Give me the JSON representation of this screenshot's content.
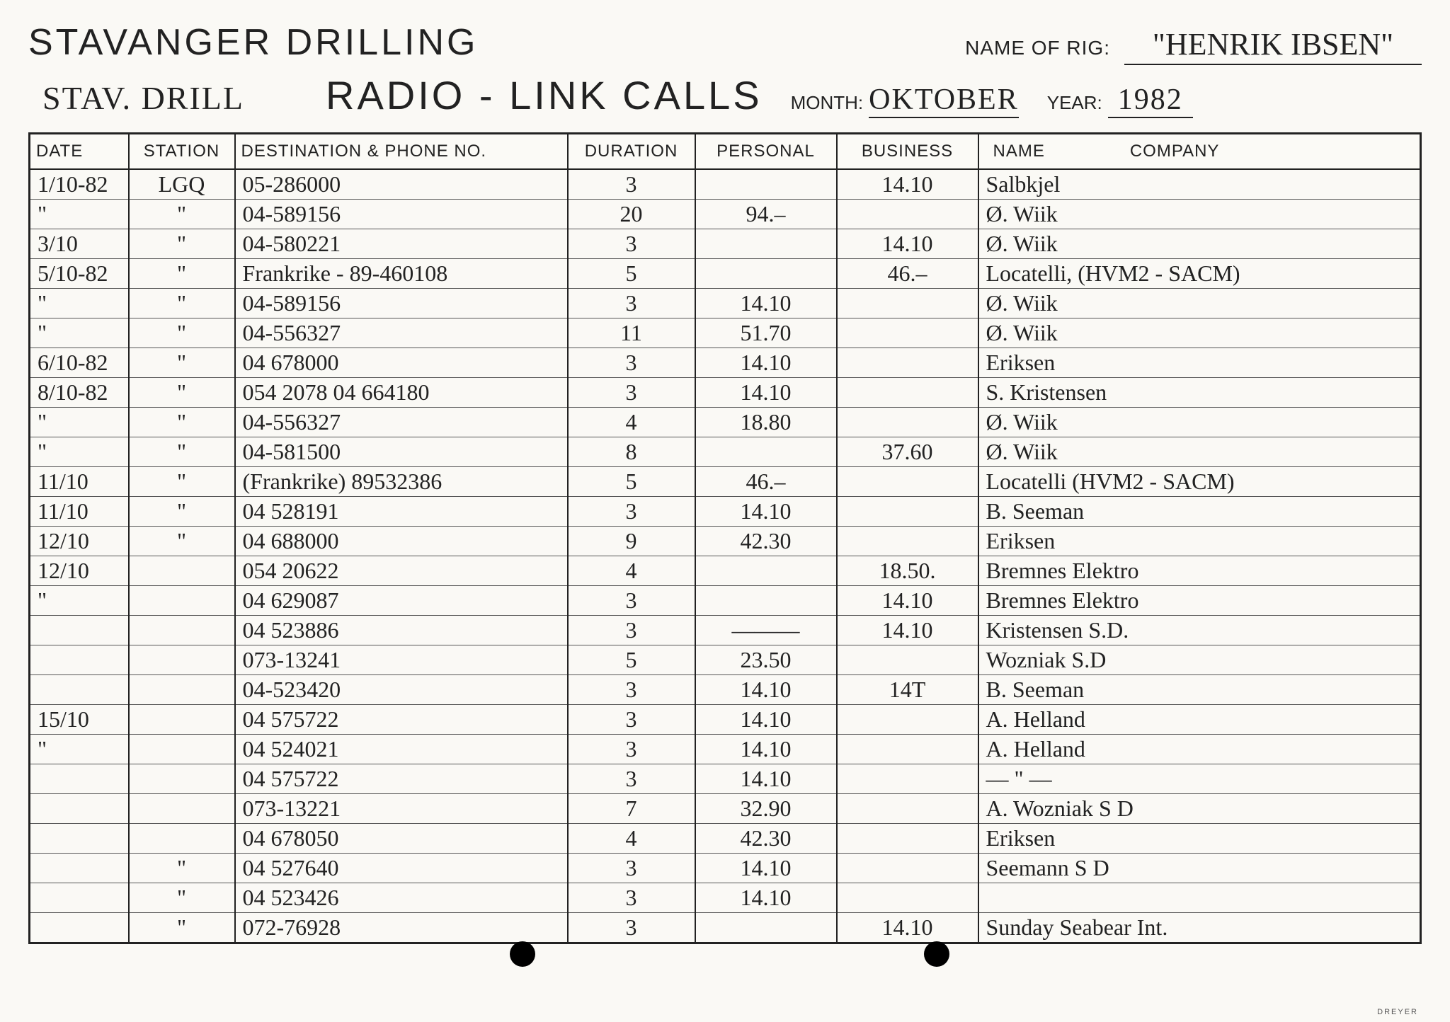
{
  "company": "STAVANGER DRILLING",
  "subtitle": "STAV. DRILL",
  "main_title": "RADIO - LINK CALLS",
  "rig_label": "NAME OF RIG:",
  "rig_name": "\"HENRIK IBSEN\"",
  "month_label": "MONTH:",
  "month_value": "OKTOBER",
  "year_label": "YEAR:",
  "year_value": "1982",
  "columns": {
    "date": "DATE",
    "station": "STATION",
    "dest": "DESTINATION & PHONE NO.",
    "duration": "DURATION",
    "personal": "PERSONAL",
    "business": "BUSINESS",
    "name": "NAME",
    "company_col": "COMPANY"
  },
  "rows": [
    {
      "date": "1/10-82",
      "station": "LGQ",
      "dest": "05-286000",
      "dur": "3",
      "pers": "",
      "bus": "14.10",
      "name": "Salbkjel"
    },
    {
      "date": "\"",
      "station": "\"",
      "dest": "04-589156",
      "dur": "20",
      "pers": "94.–",
      "bus": "",
      "name": "Ø. Wiik"
    },
    {
      "date": "3/10",
      "station": "\"",
      "dest": "04-580221",
      "dur": "3",
      "pers": "",
      "bus": "14.10",
      "name": "Ø. Wiik"
    },
    {
      "date": "5/10-82",
      "station": "\"",
      "dest": "Frankrike - 89-460108",
      "dur": "5",
      "pers": "",
      "bus": "46.–",
      "name": "Locatelli, (HVM2 - SACM)"
    },
    {
      "date": "\"",
      "station": "\"",
      "dest": "04-589156",
      "dur": "3",
      "pers": "14.10",
      "bus": "",
      "name": "Ø. Wiik"
    },
    {
      "date": "\"",
      "station": "\"",
      "dest": "04-556327",
      "dur": "11",
      "pers": "51.70",
      "bus": "",
      "name": "Ø. Wiik"
    },
    {
      "date": "6/10-82",
      "station": "\"",
      "dest": "04 678000",
      "dur": "3",
      "pers": "14.10",
      "bus": "",
      "name": "Eriksen"
    },
    {
      "date": "8/10-82",
      "station": "\"",
      "dest": "054 2078  04 664180",
      "dur": "3",
      "pers": "14.10",
      "bus": "",
      "name": "S. Kristensen"
    },
    {
      "date": "\"",
      "station": "\"",
      "dest": "04-556327",
      "dur": "4",
      "pers": "18.80",
      "bus": "",
      "name": "Ø. Wiik"
    },
    {
      "date": "\"",
      "station": "\"",
      "dest": "04-581500",
      "dur": "8",
      "pers": "",
      "bus": "37.60",
      "name": "Ø. Wiik"
    },
    {
      "date": "11/10",
      "station": "\"",
      "dest": "(Frankrike) 89532386",
      "dur": "5",
      "pers": "46.–",
      "bus": "",
      "name": "Locatelli (HVM2 - SACM)"
    },
    {
      "date": "11/10",
      "station": "\"",
      "dest": "04 528191",
      "dur": "3",
      "pers": "14.10",
      "bus": "",
      "name": "B. Seeman"
    },
    {
      "date": "12/10",
      "station": "\"",
      "dest": "04 688000",
      "dur": "9",
      "pers": "42.30",
      "bus": "",
      "name": "Eriksen"
    },
    {
      "date": "12/10",
      "station": "",
      "dest": "054 20622",
      "dur": "4",
      "pers": "",
      "bus": "18.50.",
      "name": "Bremnes Elektro"
    },
    {
      "date": "\"",
      "station": "",
      "dest": "04 629087",
      "dur": "3",
      "pers": "",
      "bus": "14.10",
      "name": "Bremnes Elektro"
    },
    {
      "date": "",
      "station": "",
      "dest": "04 523886",
      "dur": "3",
      "pers": "———",
      "bus": "14.10",
      "name": "Kristensen   S.D."
    },
    {
      "date": "",
      "station": "",
      "dest": "073-13241",
      "dur": "5",
      "pers": "23.50",
      "bus": "",
      "name": "Wozniak   S.D"
    },
    {
      "date": "",
      "station": "",
      "dest": "04-523420",
      "dur": "3",
      "pers": "14.10",
      "bus": "14T",
      "name": "B. Seeman"
    },
    {
      "date": "15/10",
      "station": "",
      "dest": "04 575722",
      "dur": "3",
      "pers": "14.10",
      "bus": "",
      "name": "A. Helland"
    },
    {
      "date": "\"",
      "station": "",
      "dest": "04 524021",
      "dur": "3",
      "pers": "14.10",
      "bus": "",
      "name": "A. Helland"
    },
    {
      "date": "",
      "station": "",
      "dest": "04 575722",
      "dur": "3",
      "pers": "14.10",
      "bus": "",
      "name": "—  \"  —"
    },
    {
      "date": "",
      "station": "",
      "dest": "073-13221",
      "dur": "7",
      "pers": "32.90",
      "bus": "",
      "name": "A. Wozniak  S D"
    },
    {
      "date": "",
      "station": "",
      "dest": "04 678050",
      "dur": "4",
      "pers": "42.30",
      "bus": "",
      "name": "Eriksen"
    },
    {
      "date": "",
      "station": "\"",
      "dest": "04 527640",
      "dur": "3",
      "pers": "14.10",
      "bus": "",
      "name": "Seemann   S D"
    },
    {
      "date": "",
      "station": "\"",
      "dest": "04 523426",
      "dur": "3",
      "pers": "14.10",
      "bus": "",
      "name": ""
    },
    {
      "date": "",
      "station": "\"",
      "dest": "072-76928",
      "dur": "3",
      "pers": "",
      "bus": "14.10",
      "name": "Sunday Seabear Int."
    }
  ],
  "footer_mark": "DREYER"
}
